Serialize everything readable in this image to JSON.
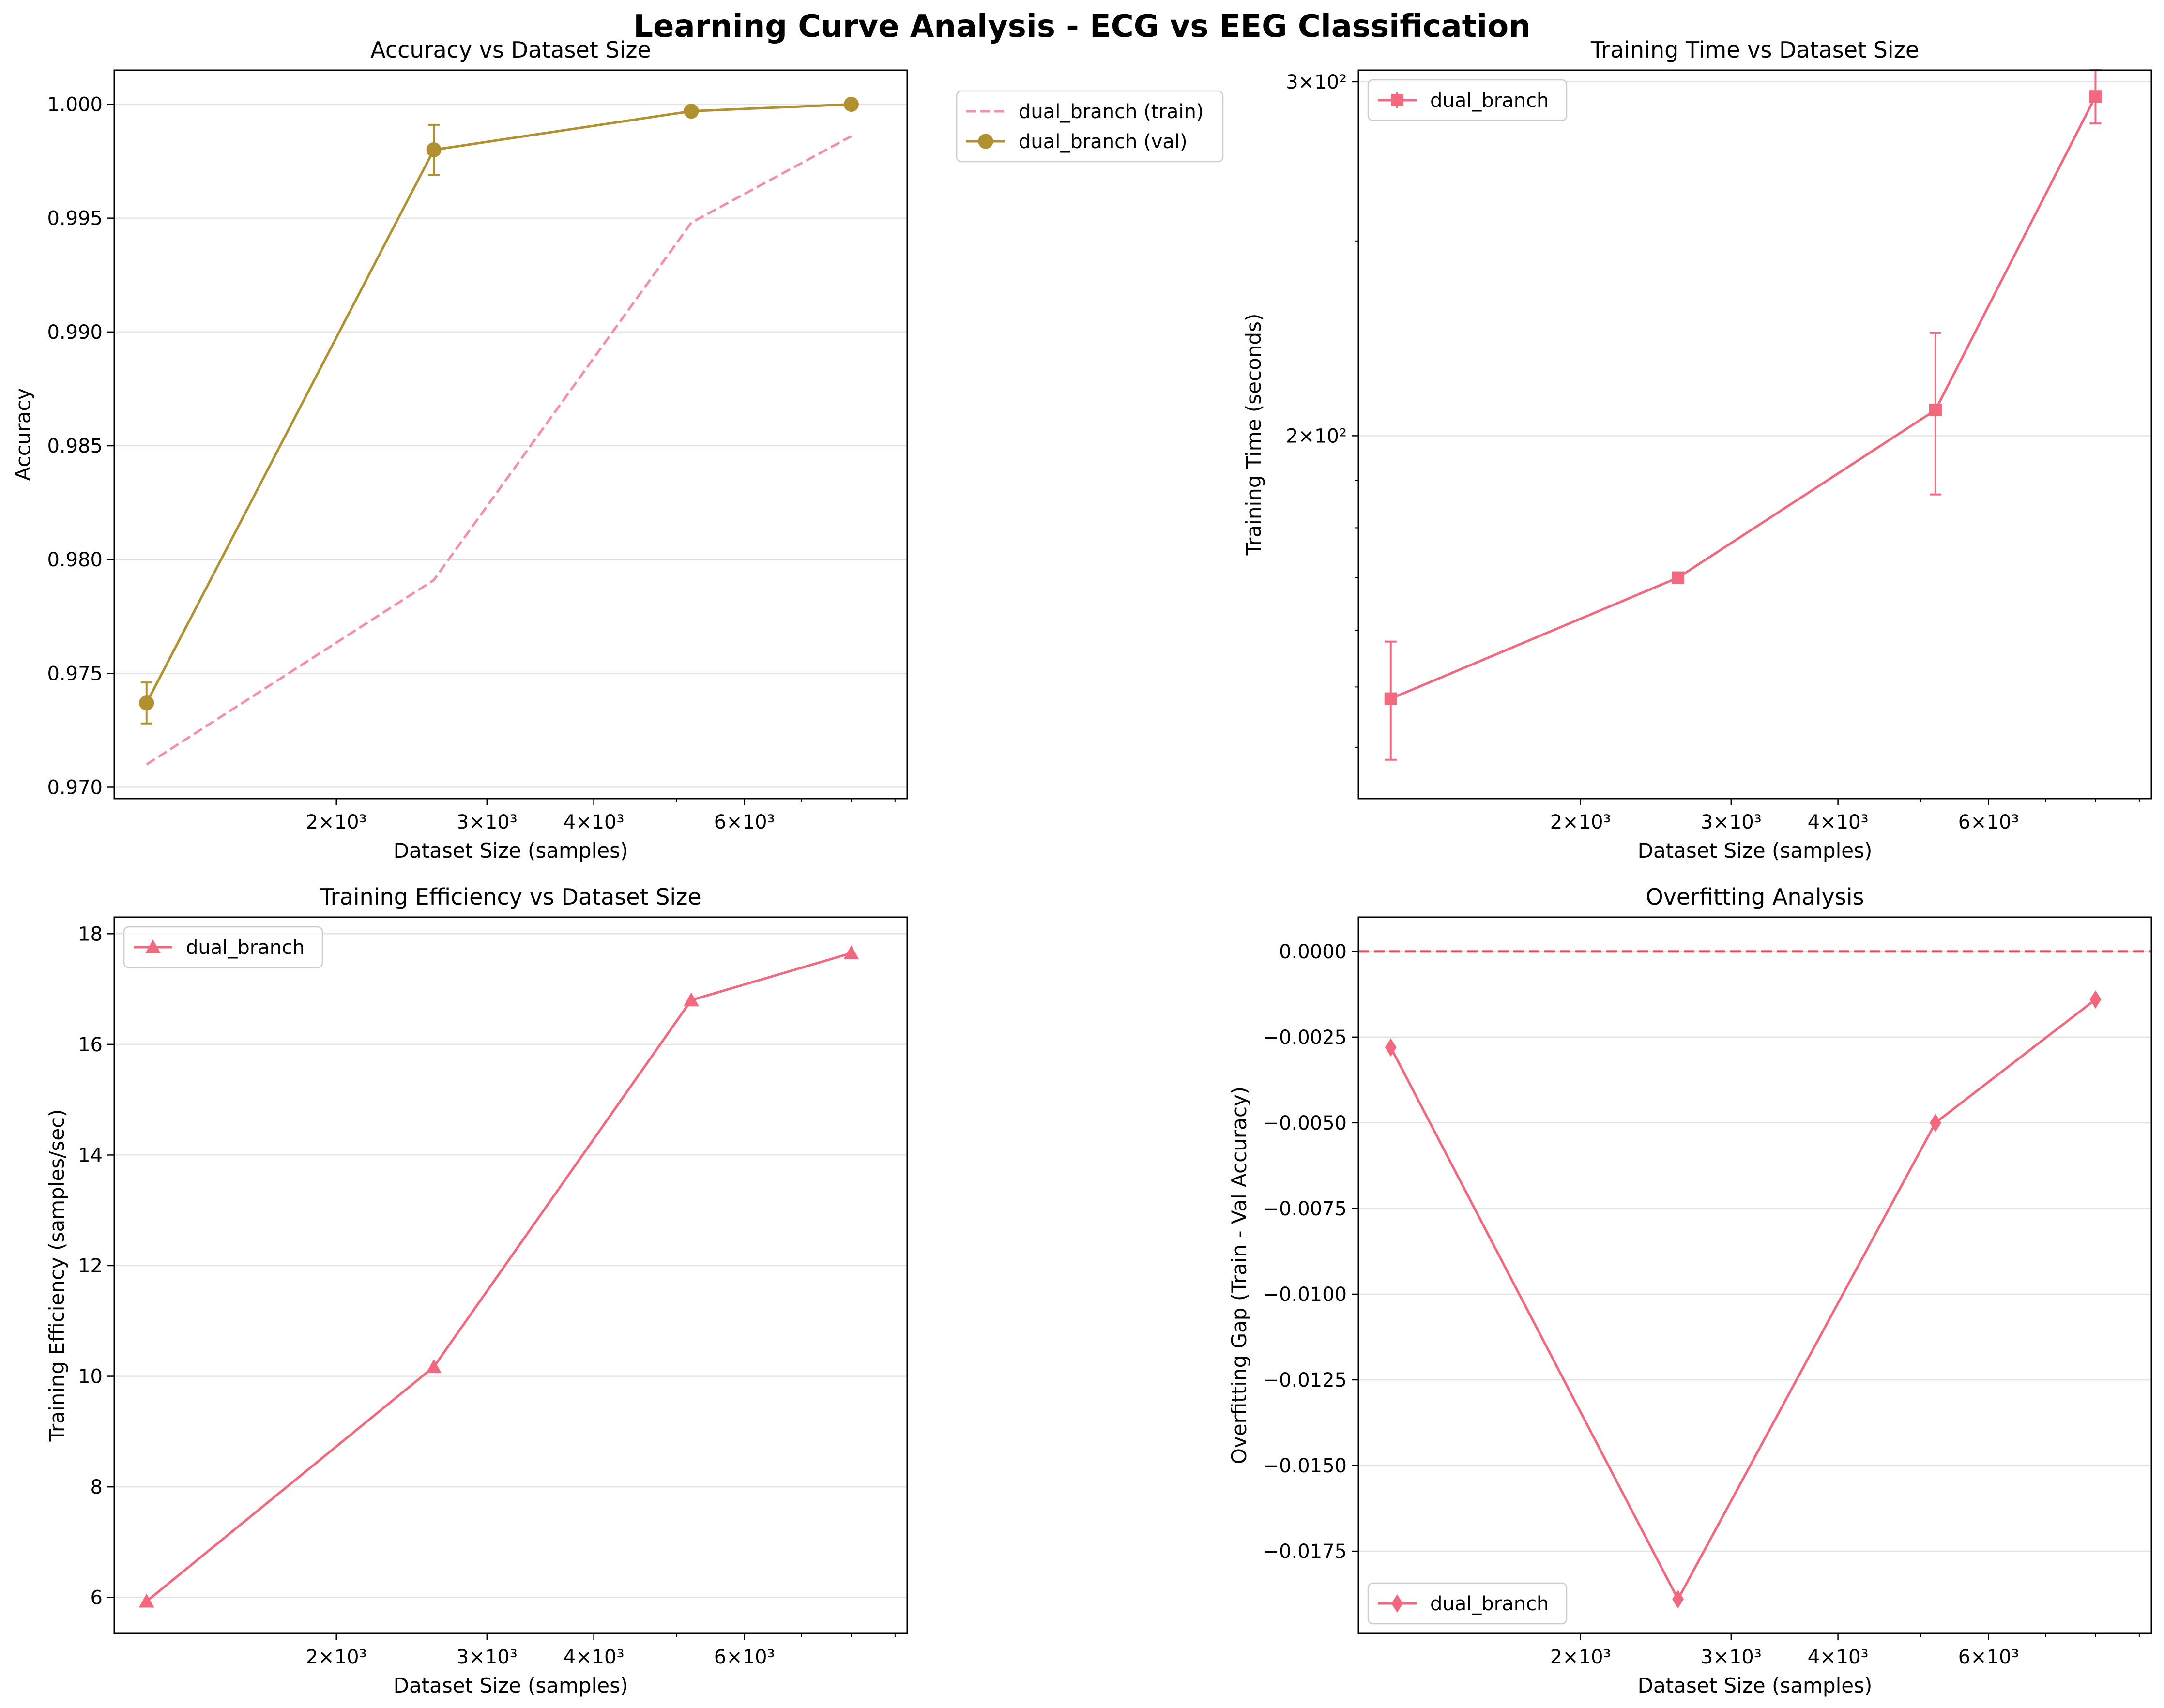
{
  "figure_title": "Learning Curve Analysis - ECG vs EEG Classification",
  "x_tick_labels": [
    {
      "value": 2000,
      "label": "2×10³"
    },
    {
      "value": 3000,
      "label": "3×10³"
    },
    {
      "value": 4000,
      "label": "4×10³"
    },
    {
      "value": 6000,
      "label": "6×10³"
    }
  ],
  "chart_data": [
    {
      "id": "accuracy",
      "type": "line",
      "title": "Accuracy vs Dataset Size",
      "xlabel": "Dataset Size (samples)",
      "ylabel": "Accuracy",
      "xscale": "log",
      "xlim": [
        1100,
        9300
      ],
      "ylim": [
        0.9695,
        1.0015
      ],
      "yticks": [
        0.97,
        0.975,
        0.98,
        0.985,
        0.99,
        0.995,
        1.0
      ],
      "ytick_labels": [
        "0.970",
        "0.975",
        "0.980",
        "0.985",
        "0.990",
        "0.995",
        "1.000"
      ],
      "grid": "y",
      "legend_placement": "outside-right",
      "series": [
        {
          "name": "dual_branch (train)",
          "color": "#f48fa5",
          "style": "dashed",
          "marker": "none",
          "x": [
            1200,
            2600,
            5200,
            8000
          ],
          "y": [
            0.971,
            0.9791,
            0.9948,
            0.9986
          ]
        },
        {
          "name": "dual_branch (val)",
          "color": "#b1902f",
          "style": "solid",
          "marker": "circle",
          "x": [
            1200,
            2600,
            5200,
            8000
          ],
          "y": [
            0.9737,
            0.998,
            0.9997,
            1.0
          ],
          "yerr": [
            0.0009,
            0.0011,
            0.0002,
            0.0
          ]
        }
      ]
    },
    {
      "id": "time",
      "type": "line",
      "title": "Training Time vs Dataset Size",
      "xlabel": "Dataset Size (samples)",
      "ylabel": "Training Time (seconds)",
      "xscale": "log",
      "yscale": "log",
      "xlim": [
        1100,
        9300
      ],
      "ylim": [
        132,
        304
      ],
      "yticks": [
        200,
        300
      ],
      "ytick_labels": [
        "2×10²",
        "3×10²"
      ],
      "grid": "y",
      "legend_placement": "upper-left",
      "series": [
        {
          "name": "dual_branch",
          "color": "#f2697f",
          "style": "solid",
          "marker": "square",
          "x": [
            1200,
            2600,
            5200,
            8000
          ],
          "y": [
            148,
            170,
            206,
            295
          ],
          "yerr": [
            10,
            0,
            19,
            9
          ]
        }
      ]
    },
    {
      "id": "efficiency",
      "type": "line",
      "title": "Training Efficiency vs Dataset Size",
      "xlabel": "Dataset Size (samples)",
      "ylabel": "Training Efficiency (samples/sec)",
      "xscale": "log",
      "xlim": [
        1100,
        9300
      ],
      "ylim": [
        5.35,
        18.3
      ],
      "yticks": [
        6,
        8,
        10,
        12,
        14,
        16,
        18
      ],
      "ytick_labels": [
        "6",
        "8",
        "10",
        "12",
        "14",
        "16",
        "18"
      ],
      "grid": "y",
      "legend_placement": "upper-left",
      "series": [
        {
          "name": "dual_branch",
          "color": "#f2697f",
          "style": "solid",
          "marker": "triangle",
          "x": [
            1200,
            2600,
            5200,
            8000
          ],
          "y": [
            5.93,
            10.17,
            16.8,
            17.65
          ]
        }
      ]
    },
    {
      "id": "overfitting",
      "type": "line",
      "title": "Overfitting Analysis",
      "xlabel": "Dataset Size (samples)",
      "ylabel": "Overfitting Gap (Train - Val Accuracy)",
      "xscale": "log",
      "xlim": [
        1100,
        9300
      ],
      "ylim": [
        -0.0199,
        0.001
      ],
      "yticks": [
        0.0,
        -0.0025,
        -0.005,
        -0.0075,
        -0.01,
        -0.0125,
        -0.015,
        -0.0175
      ],
      "ytick_labels": [
        "0.0000",
        "−0.0025",
        "−0.0050",
        "−0.0075",
        "−0.0100",
        "−0.0125",
        "−0.0150",
        "−0.0175"
      ],
      "grid": "y",
      "legend_placement": "lower-left",
      "reference_line": {
        "y": 0.0,
        "color": "#f0484f",
        "style": "dashed"
      },
      "series": [
        {
          "name": "dual_branch",
          "color": "#f2697f",
          "style": "solid",
          "marker": "diamond",
          "x": [
            1200,
            2600,
            5200,
            8000
          ],
          "y": [
            -0.0028,
            -0.0189,
            -0.005,
            -0.0014
          ]
        }
      ]
    }
  ]
}
